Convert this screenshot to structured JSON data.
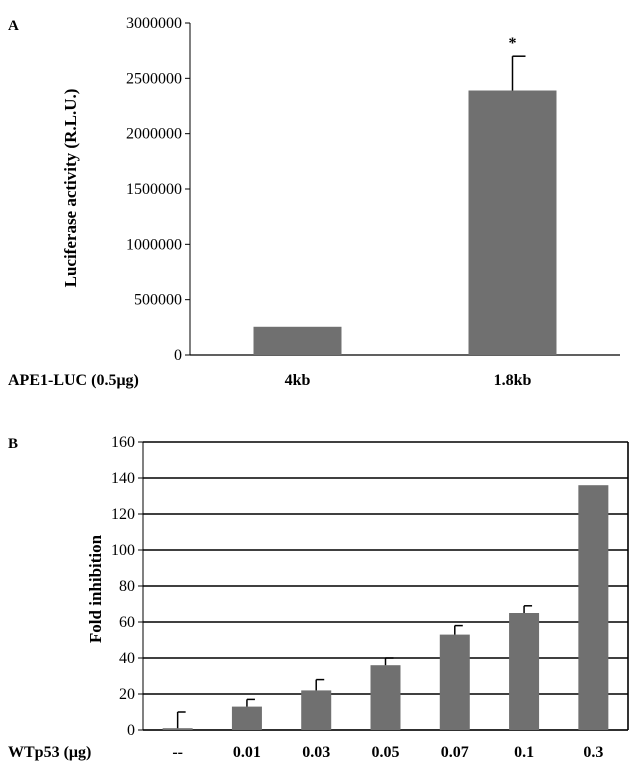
{
  "chart_data": [
    {
      "panel": "A",
      "type": "bar",
      "ylabel": "Luciferase activity (R.L.U.)",
      "xlabel": "APE1-LUC (0.5μg)",
      "categories": [
        "4kb",
        "1.8kb"
      ],
      "values": [
        255000,
        2390000
      ],
      "errors": [
        0,
        310000
      ],
      "annotations": [
        {
          "category": "1.8kb",
          "text": "*"
        }
      ],
      "ylim": [
        0,
        3000000
      ],
      "yticks": [
        "0",
        "500000",
        "1000000",
        "1500000",
        "2000000",
        "2500000",
        "3000000"
      ],
      "grid": false,
      "bar_color": "#707070"
    },
    {
      "panel": "B",
      "type": "bar",
      "ylabel": "Fold inhibition",
      "xlabel": "WTp53 (μg)",
      "categories": [
        "--",
        "0.01",
        "0.03",
        "0.05",
        "0.07",
        "0.1",
        "0.3"
      ],
      "values": [
        1,
        13,
        22,
        36,
        53,
        65,
        136
      ],
      "errors": [
        9,
        4,
        6,
        4,
        5,
        4,
        0
      ],
      "ylim": [
        0,
        160
      ],
      "yticks": [
        "0",
        "20",
        "40",
        "60",
        "80",
        "100",
        "120",
        "140",
        "160"
      ],
      "grid": true,
      "bar_color": "#707070"
    }
  ]
}
